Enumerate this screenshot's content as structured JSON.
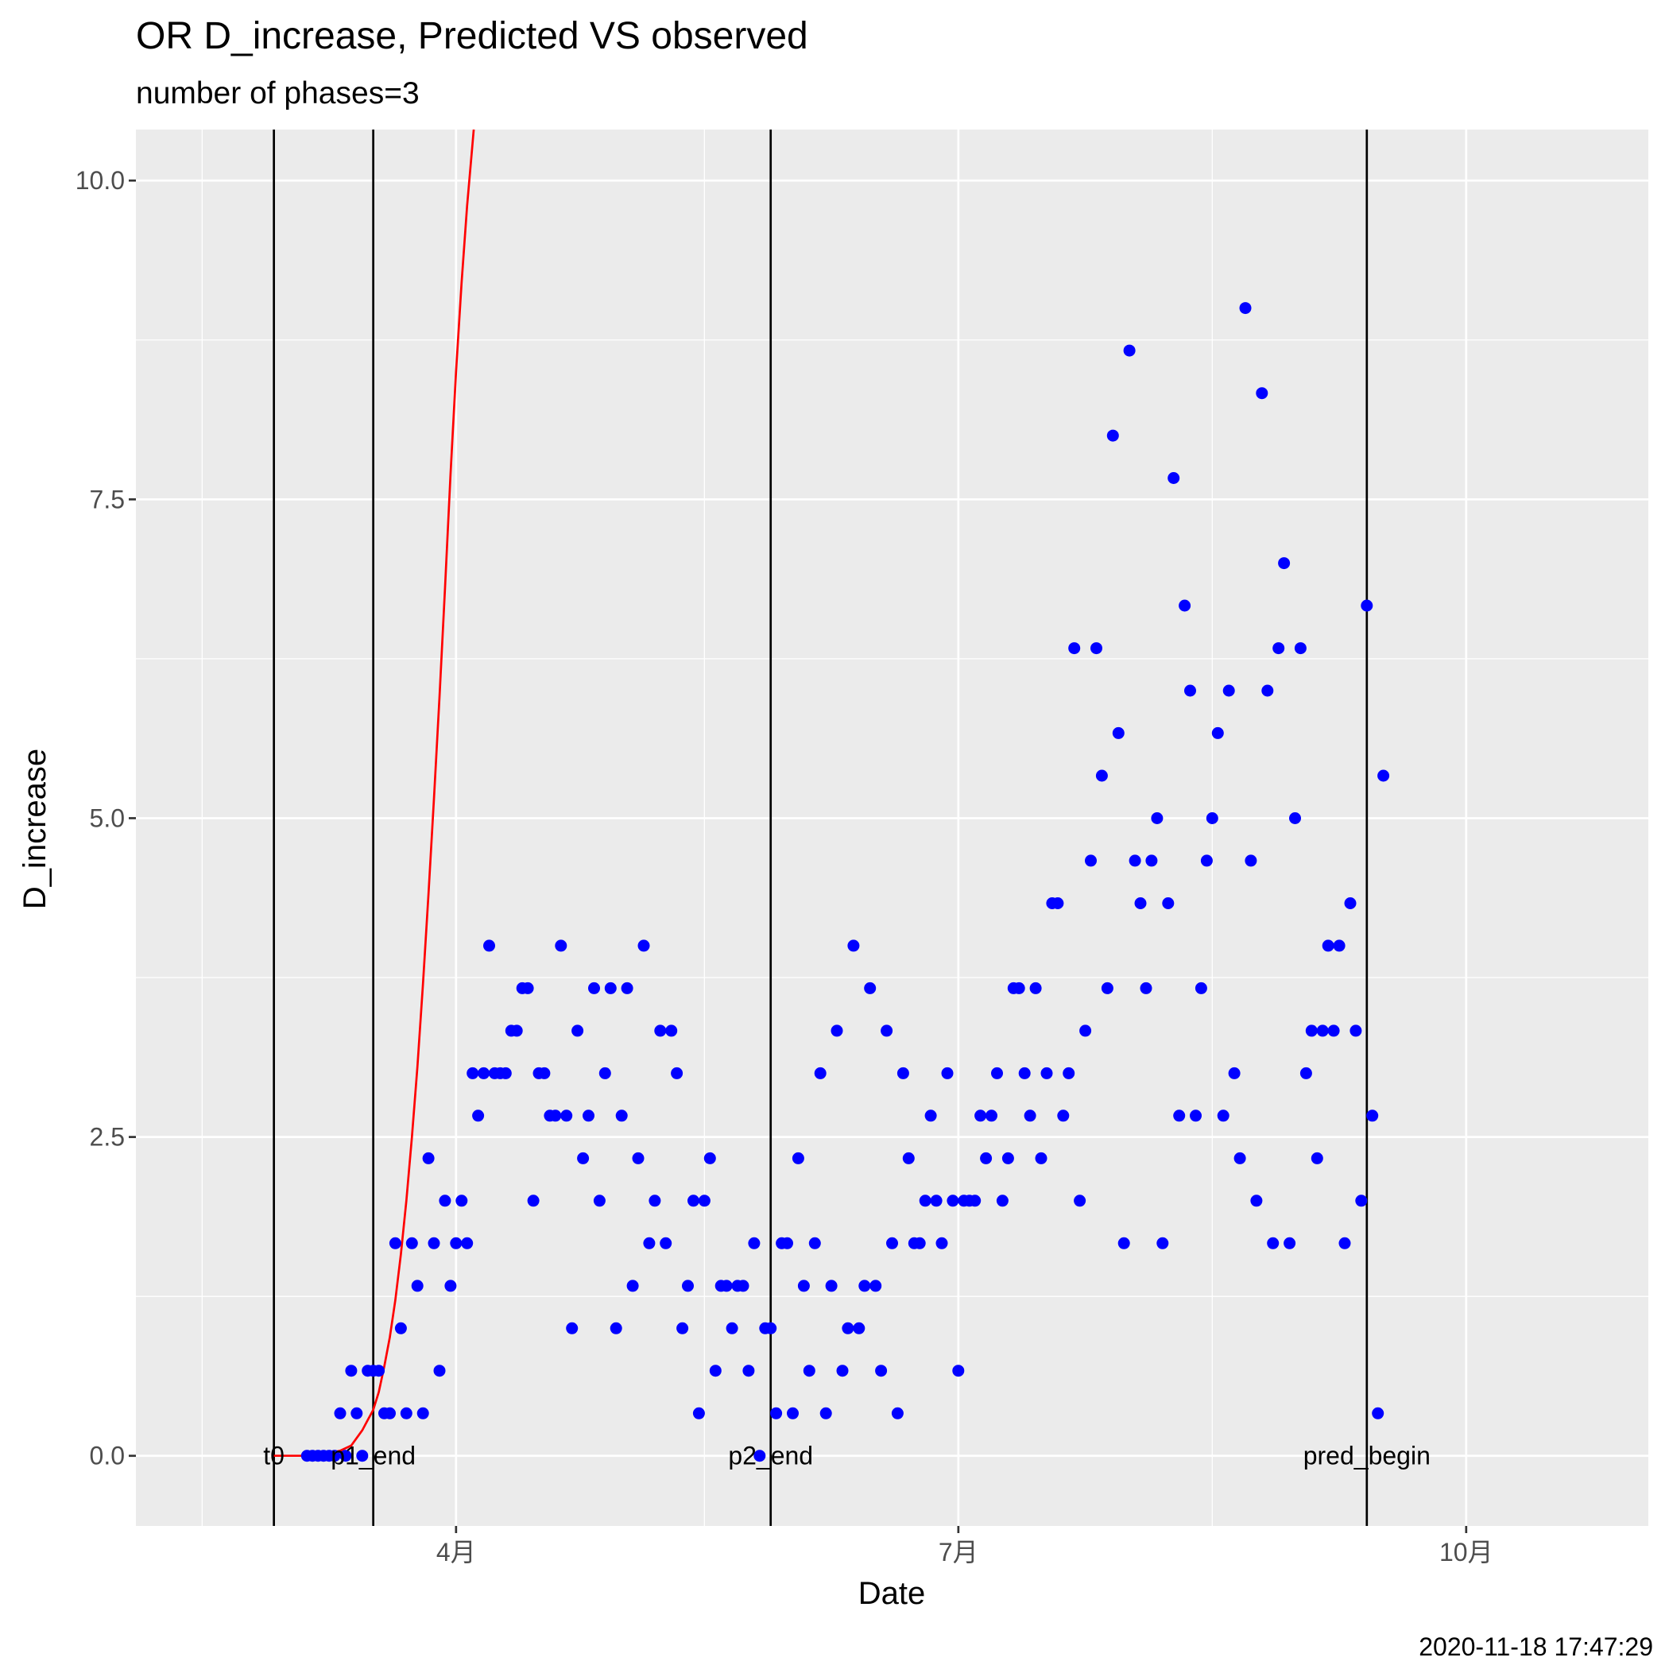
{
  "chart_data": {
    "type": "scatter",
    "title": "OR D_increase, Predicted VS observed",
    "subtitle": "number of phases=3",
    "xlabel": "Date",
    "ylabel": "D_increase",
    "caption": "2020-11-18 17:47:29",
    "xlim": [
      "2020-02-03",
      "2020-11-03"
    ],
    "ylim": [
      -0.55,
      10.4
    ],
    "y_ticks": [
      0.0,
      2.5,
      5.0,
      7.5,
      10.0
    ],
    "y_tick_labels": [
      "0.0",
      "2.5",
      "5.0",
      "7.5",
      "10.0"
    ],
    "x_ticks": [
      "2020-04-01",
      "2020-07-01",
      "2020-10-01"
    ],
    "x_tick_labels": [
      "4月",
      "7月",
      "10月"
    ],
    "x_minor_ticks": [
      "2020-02-15",
      "2020-05-16",
      "2020-08-16"
    ],
    "grid": true,
    "background": "#ebebeb",
    "vertical_lines": [
      {
        "date": "2020-02-28",
        "label": "t0"
      },
      {
        "date": "2020-03-17",
        "label": "p1_end"
      },
      {
        "date": "2020-05-28",
        "label": "p2_end"
      },
      {
        "date": "2020-09-13",
        "label": "pred_begin"
      }
    ],
    "series": [
      {
        "type": "scatter",
        "color": "#0000ff",
        "points": [
          [
            "2020-03-05",
            0
          ],
          [
            "2020-03-06",
            0
          ],
          [
            "2020-03-07",
            0
          ],
          [
            "2020-03-08",
            0
          ],
          [
            "2020-03-09",
            0
          ],
          [
            "2020-03-10",
            0
          ],
          [
            "2020-03-11",
            0.333
          ],
          [
            "2020-03-12",
            0
          ],
          [
            "2020-03-13",
            0.667
          ],
          [
            "2020-03-14",
            0.333
          ],
          [
            "2020-03-15",
            0
          ],
          [
            "2020-03-16",
            0.667
          ],
          [
            "2020-03-17",
            0.667
          ],
          [
            "2020-03-18",
            0.667
          ],
          [
            "2020-03-19",
            0.333
          ],
          [
            "2020-03-20",
            0.333
          ],
          [
            "2020-03-21",
            1.667
          ],
          [
            "2020-03-22",
            1.0
          ],
          [
            "2020-03-23",
            0.333
          ],
          [
            "2020-03-24",
            1.667
          ],
          [
            "2020-03-25",
            1.333
          ],
          [
            "2020-03-26",
            0.333
          ],
          [
            "2020-03-27",
            2.333
          ],
          [
            "2020-03-28",
            1.667
          ],
          [
            "2020-03-29",
            0.667
          ],
          [
            "2020-03-30",
            2.0
          ],
          [
            "2020-03-31",
            1.333
          ],
          [
            "2020-04-01",
            1.667
          ],
          [
            "2020-04-02",
            2.0
          ],
          [
            "2020-04-03",
            1.667
          ],
          [
            "2020-04-04",
            3.0
          ],
          [
            "2020-04-05",
            2.667
          ],
          [
            "2020-04-06",
            3.0
          ],
          [
            "2020-04-07",
            4.0
          ],
          [
            "2020-04-08",
            3.0
          ],
          [
            "2020-04-09",
            3.0
          ],
          [
            "2020-04-10",
            3.0
          ],
          [
            "2020-04-11",
            3.333
          ],
          [
            "2020-04-12",
            3.333
          ],
          [
            "2020-04-13",
            3.667
          ],
          [
            "2020-04-14",
            3.667
          ],
          [
            "2020-04-15",
            2.0
          ],
          [
            "2020-04-16",
            3.0
          ],
          [
            "2020-04-17",
            3.0
          ],
          [
            "2020-04-18",
            2.667
          ],
          [
            "2020-04-19",
            2.667
          ],
          [
            "2020-04-20",
            4.0
          ],
          [
            "2020-04-21",
            2.667
          ],
          [
            "2020-04-22",
            1.0
          ],
          [
            "2020-04-23",
            3.333
          ],
          [
            "2020-04-24",
            2.333
          ],
          [
            "2020-04-25",
            2.667
          ],
          [
            "2020-04-26",
            3.667
          ],
          [
            "2020-04-27",
            2.0
          ],
          [
            "2020-04-28",
            3.0
          ],
          [
            "2020-04-29",
            3.667
          ],
          [
            "2020-04-30",
            1.0
          ],
          [
            "2020-05-01",
            2.667
          ],
          [
            "2020-05-02",
            3.667
          ],
          [
            "2020-05-03",
            1.333
          ],
          [
            "2020-05-04",
            2.333
          ],
          [
            "2020-05-05",
            4.0
          ],
          [
            "2020-05-06",
            1.667
          ],
          [
            "2020-05-07",
            2.0
          ],
          [
            "2020-05-08",
            3.333
          ],
          [
            "2020-05-09",
            1.667
          ],
          [
            "2020-05-10",
            3.333
          ],
          [
            "2020-05-11",
            3.0
          ],
          [
            "2020-05-12",
            1.0
          ],
          [
            "2020-05-13",
            1.333
          ],
          [
            "2020-05-14",
            2.0
          ],
          [
            "2020-05-15",
            0.333
          ],
          [
            "2020-05-16",
            2.0
          ],
          [
            "2020-05-17",
            2.333
          ],
          [
            "2020-05-18",
            0.667
          ],
          [
            "2020-05-19",
            1.333
          ],
          [
            "2020-05-20",
            1.333
          ],
          [
            "2020-05-21",
            1.0
          ],
          [
            "2020-05-22",
            1.333
          ],
          [
            "2020-05-23",
            1.333
          ],
          [
            "2020-05-24",
            0.667
          ],
          [
            "2020-05-25",
            1.667
          ],
          [
            "2020-05-26",
            0
          ],
          [
            "2020-05-27",
            1.0
          ],
          [
            "2020-05-28",
            1.0
          ],
          [
            "2020-05-29",
            0.333
          ],
          [
            "2020-05-30",
            1.667
          ],
          [
            "2020-05-31",
            1.667
          ],
          [
            "2020-06-01",
            0.333
          ],
          [
            "2020-06-02",
            2.333
          ],
          [
            "2020-06-03",
            1.333
          ],
          [
            "2020-06-04",
            0.667
          ],
          [
            "2020-06-05",
            1.667
          ],
          [
            "2020-06-06",
            3.0
          ],
          [
            "2020-06-07",
            0.333
          ],
          [
            "2020-06-08",
            1.333
          ],
          [
            "2020-06-09",
            3.333
          ],
          [
            "2020-06-10",
            0.667
          ],
          [
            "2020-06-11",
            1.0
          ],
          [
            "2020-06-12",
            4.0
          ],
          [
            "2020-06-13",
            1.0
          ],
          [
            "2020-06-14",
            1.333
          ],
          [
            "2020-06-15",
            3.667
          ],
          [
            "2020-06-16",
            1.333
          ],
          [
            "2020-06-17",
            0.667
          ],
          [
            "2020-06-18",
            3.333
          ],
          [
            "2020-06-19",
            1.667
          ],
          [
            "2020-06-20",
            0.333
          ],
          [
            "2020-06-21",
            3.0
          ],
          [
            "2020-06-22",
            2.333
          ],
          [
            "2020-06-23",
            1.667
          ],
          [
            "2020-06-24",
            1.667
          ],
          [
            "2020-06-25",
            2.0
          ],
          [
            "2020-06-26",
            2.667
          ],
          [
            "2020-06-27",
            2.0
          ],
          [
            "2020-06-28",
            1.667
          ],
          [
            "2020-06-29",
            3.0
          ],
          [
            "2020-06-30",
            2.0
          ],
          [
            "2020-07-01",
            0.667
          ],
          [
            "2020-07-02",
            2.0
          ],
          [
            "2020-07-03",
            2.0
          ],
          [
            "2020-07-04",
            2.0
          ],
          [
            "2020-07-05",
            2.667
          ],
          [
            "2020-07-06",
            2.333
          ],
          [
            "2020-07-07",
            2.667
          ],
          [
            "2020-07-08",
            3.0
          ],
          [
            "2020-07-09",
            2.0
          ],
          [
            "2020-07-10",
            2.333
          ],
          [
            "2020-07-11",
            3.667
          ],
          [
            "2020-07-12",
            3.667
          ],
          [
            "2020-07-13",
            3.0
          ],
          [
            "2020-07-14",
            2.667
          ],
          [
            "2020-07-15",
            3.667
          ],
          [
            "2020-07-16",
            2.333
          ],
          [
            "2020-07-17",
            3.0
          ],
          [
            "2020-07-18",
            4.333
          ],
          [
            "2020-07-19",
            4.333
          ],
          [
            "2020-07-20",
            2.667
          ],
          [
            "2020-07-21",
            3.0
          ],
          [
            "2020-07-22",
            6.333
          ],
          [
            "2020-07-23",
            2.0
          ],
          [
            "2020-07-24",
            3.333
          ],
          [
            "2020-07-25",
            4.667
          ],
          [
            "2020-07-26",
            6.333
          ],
          [
            "2020-07-27",
            5.333
          ],
          [
            "2020-07-28",
            3.667
          ],
          [
            "2020-07-29",
            8.0
          ],
          [
            "2020-07-30",
            5.667
          ],
          [
            "2020-07-31",
            1.667
          ],
          [
            "2020-08-01",
            8.667
          ],
          [
            "2020-08-02",
            4.667
          ],
          [
            "2020-08-03",
            4.333
          ],
          [
            "2020-08-04",
            3.667
          ],
          [
            "2020-08-05",
            4.667
          ],
          [
            "2020-08-06",
            5.0
          ],
          [
            "2020-08-07",
            1.667
          ],
          [
            "2020-08-08",
            4.333
          ],
          [
            "2020-08-09",
            7.667
          ],
          [
            "2020-08-10",
            2.667
          ],
          [
            "2020-08-11",
            6.667
          ],
          [
            "2020-08-12",
            6.0
          ],
          [
            "2020-08-13",
            2.667
          ],
          [
            "2020-08-14",
            3.667
          ],
          [
            "2020-08-15",
            4.667
          ],
          [
            "2020-08-16",
            5.0
          ],
          [
            "2020-08-17",
            5.667
          ],
          [
            "2020-08-18",
            2.667
          ],
          [
            "2020-08-19",
            6.0
          ],
          [
            "2020-08-20",
            3.0
          ],
          [
            "2020-08-21",
            2.333
          ],
          [
            "2020-08-22",
            9.0
          ],
          [
            "2020-08-23",
            4.667
          ],
          [
            "2020-08-24",
            2.0
          ],
          [
            "2020-08-25",
            8.333
          ],
          [
            "2020-08-26",
            6.0
          ],
          [
            "2020-08-27",
            1.667
          ],
          [
            "2020-08-28",
            6.333
          ],
          [
            "2020-08-29",
            7.0
          ],
          [
            "2020-08-30",
            1.667
          ],
          [
            "2020-08-31",
            5.0
          ],
          [
            "2020-09-01",
            6.333
          ],
          [
            "2020-09-02",
            3.0
          ],
          [
            "2020-09-03",
            3.333
          ],
          [
            "2020-09-04",
            2.333
          ],
          [
            "2020-09-05",
            3.333
          ],
          [
            "2020-09-06",
            4.0
          ],
          [
            "2020-09-07",
            3.333
          ],
          [
            "2020-09-08",
            4.0
          ],
          [
            "2020-09-09",
            1.667
          ],
          [
            "2020-09-10",
            4.333
          ],
          [
            "2020-09-11",
            3.333
          ],
          [
            "2020-09-12",
            2.0
          ],
          [
            "2020-09-13",
            6.667
          ],
          [
            "2020-09-14",
            2.667
          ],
          [
            "2020-09-15",
            0.333
          ],
          [
            "2020-09-16",
            5.333
          ]
        ]
      },
      {
        "type": "line",
        "color": "#ff0000",
        "points": [
          [
            "2020-02-28",
            0
          ],
          [
            "2020-03-04",
            0
          ],
          [
            "2020-03-08",
            0.01
          ],
          [
            "2020-03-11",
            0.04
          ],
          [
            "2020-03-13",
            0.08
          ],
          [
            "2020-03-15",
            0.2
          ],
          [
            "2020-03-16",
            0.28
          ],
          [
            "2020-03-17",
            0.36
          ],
          [
            "2020-03-18",
            0.5
          ],
          [
            "2020-03-19",
            0.7
          ],
          [
            "2020-03-20",
            0.93
          ],
          [
            "2020-03-21",
            1.22
          ],
          [
            "2020-03-22",
            1.58
          ],
          [
            "2020-03-23",
            2.0
          ],
          [
            "2020-03-24",
            2.5
          ],
          [
            "2020-03-25",
            3.05
          ],
          [
            "2020-03-26",
            3.7
          ],
          [
            "2020-03-27",
            4.4
          ],
          [
            "2020-03-28",
            5.15
          ],
          [
            "2020-03-29",
            5.95
          ],
          [
            "2020-03-30",
            6.8
          ],
          [
            "2020-03-31",
            7.7
          ],
          [
            "2020-04-01",
            8.5
          ],
          [
            "2020-04-02",
            9.2
          ],
          [
            "2020-04-03",
            9.8
          ],
          [
            "2020-04-04",
            10.3
          ],
          [
            "2020-04-05",
            10.8
          ]
        ]
      }
    ]
  }
}
